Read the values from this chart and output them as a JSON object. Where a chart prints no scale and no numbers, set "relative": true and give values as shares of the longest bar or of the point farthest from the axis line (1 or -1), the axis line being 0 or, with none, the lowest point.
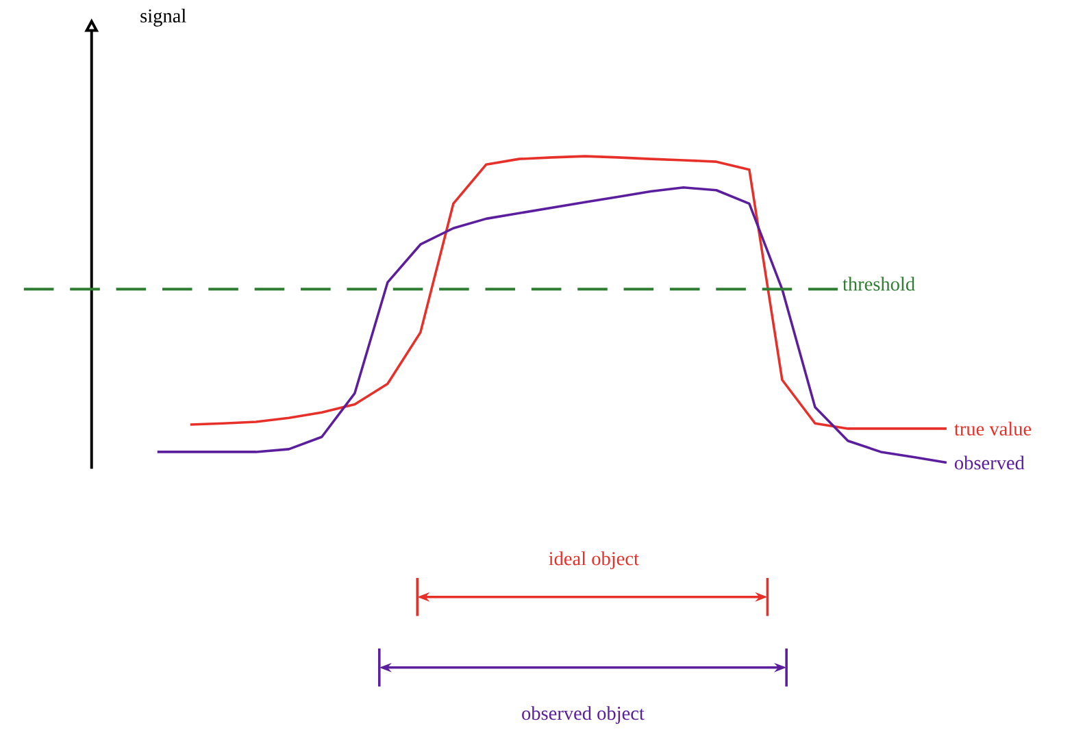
{
  "chart_data": {
    "type": "line",
    "relative": true,
    "categories": [
      null,
      null,
      null,
      null,
      null,
      null,
      null,
      null,
      null,
      null,
      null,
      null,
      null,
      null,
      null,
      null,
      null,
      null,
      null,
      null,
      null,
      null,
      null,
      null,
      null
    ],
    "series": [
      {
        "name": "true value",
        "color": "#e8302a",
        "values": [
          null,
          0.124,
          0.128,
          0.133,
          0.146,
          0.164,
          0.19,
          0.257,
          0.425,
          0.845,
          0.973,
          0.991,
          0.996,
          1,
          0.996,
          0.991,
          0.987,
          0.982,
          0.956,
          0.27,
          0.128,
          0.111,
          0.111,
          0.111,
          0.111
        ]
      },
      {
        "name": "observed",
        "color": "#5b1f9e",
        "values": [
          0.035,
          0.035,
          0.035,
          0.035,
          0.044,
          0.084,
          0.226,
          0.588,
          0.712,
          0.765,
          0.796,
          0.814,
          0.832,
          0.85,
          0.867,
          0.885,
          0.898,
          0.889,
          0.845,
          0.566,
          0.181,
          0.071,
          0.035,
          0.018,
          0
        ]
      }
    ],
    "ref_lines": [
      {
        "axis": "y",
        "value": 0.566,
        "label": "threshold",
        "color": "#2e7d32",
        "line_style": "dashed"
      }
    ],
    "annotations": [
      "signal",
      "ideal object",
      "observed object"
    ]
  }
}
